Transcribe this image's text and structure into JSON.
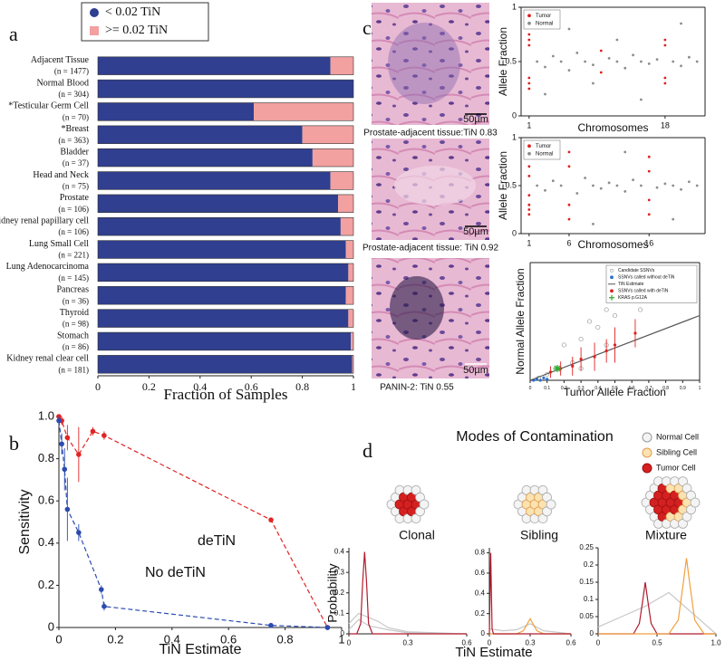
{
  "chart_data": [
    {
      "type": "bar",
      "orientation": "horizontal",
      "stacked": true,
      "panel": "a",
      "categories": [
        "Adjacent Tissue",
        "Normal Blood",
        "*Testicular Germ Cell",
        "*Breast",
        "Bladder",
        "Head and Neck",
        "Prostate",
        "Kidney renal papillary cell",
        "Lung Small Cell",
        "Lung Adenocarcinoma",
        "Pancreas",
        "Thyroid",
        "Stomach",
        "Kidney renal clear cell"
      ],
      "n_labels": [
        "(n = 1477)",
        "(n = 304)",
        "(n = 70)",
        "(n = 363)",
        "(n = 37)",
        "(n = 75)",
        "(n = 106)",
        "(n = 106)",
        "(n = 221)",
        "(n = 145)",
        "(n = 36)",
        "(n = 98)",
        "(n = 86)",
        "(n = 181)"
      ],
      "category_colors": [
        "#111111",
        "#111111",
        "#2a3a9a",
        "#2a3a9a",
        "#111111",
        "#111111",
        "#111111",
        "#111111",
        "#111111",
        "#111111",
        "#111111",
        "#111111",
        "#111111",
        "#111111"
      ],
      "series": [
        {
          "name": "< 0.02 TiN",
          "color": "#303f8f",
          "values": [
            0.91,
            1.0,
            0.61,
            0.8,
            0.84,
            0.91,
            0.94,
            0.95,
            0.97,
            0.98,
            0.97,
            0.98,
            0.99,
            0.995
          ]
        },
        {
          "name": ">= 0.02 TiN",
          "color": "#f2a0a0",
          "values": [
            0.09,
            0,
            0.39,
            0.2,
            0.16,
            0.09,
            0.06,
            0.05,
            0.03,
            0.02,
            0.03,
            0.02,
            0.01,
            0.005
          ]
        }
      ],
      "xlabel": "Fraction of Samples",
      "xlim": [
        0,
        1
      ],
      "xticks": [
        0,
        0.2,
        0.4,
        0.6,
        0.8,
        1
      ]
    },
    {
      "type": "line",
      "panel": "b",
      "xlabel": "TiN Estimate",
      "ylabel": "Sensitivity",
      "xlim": [
        0,
        1
      ],
      "ylim": [
        0,
        1
      ],
      "xticks": [
        0,
        0.2,
        0.4,
        0.6,
        0.8,
        1
      ],
      "yticks": [
        0,
        0.2,
        0.4,
        0.6,
        0.8,
        {
          "value": 1,
          "label": "1.0"
        }
      ],
      "series": [
        {
          "name": "deTiN",
          "color": "#e02424",
          "line": "dashed",
          "marker": "dot",
          "x": [
            0,
            0.01,
            0.03,
            0.07,
            0.12,
            0.16,
            0.75,
            0.95
          ],
          "values": [
            1,
            0.98,
            0.9,
            0.82,
            0.93,
            0.91,
            0.51,
            0
          ],
          "errors": [
            0.01,
            0.02,
            0.06,
            0.13,
            0.02,
            0.02,
            0.01,
            0.01
          ]
        },
        {
          "name": "No deTiN",
          "color": "#2b4bb0",
          "line": "dashed",
          "marker": "dot",
          "x": [
            0,
            0.01,
            0.02,
            0.03,
            0.07,
            0.15,
            0.16,
            0.75,
            0.95
          ],
          "values": [
            0.98,
            0.87,
            0.75,
            0.56,
            0.45,
            0.18,
            0.1,
            0.01,
            0
          ],
          "errors": [
            0.02,
            0.05,
            0.1,
            0.15,
            0.04,
            0.02,
            0.02,
            0.01,
            0.005
          ]
        }
      ]
    },
    {
      "type": "scatter",
      "panel": "c",
      "xlabel": "Chromosomes",
      "ylabel": "Allele Fraction",
      "legend": "upper left",
      "xlim": [
        0,
        23
      ],
      "ylim": [
        0,
        1
      ],
      "xticks": [
        1,
        18
      ],
      "yticks": [
        0,
        0.5,
        1
      ],
      "series": [
        {
          "name": "Tumor",
          "color": "#e02020",
          "marker": "dot",
          "x": [
            1,
            1,
            1,
            1,
            1,
            1,
            18,
            18,
            18,
            18,
            10,
            10
          ],
          "values": [
            0.25,
            0.35,
            0.65,
            0.75,
            0.3,
            0.7,
            0.3,
            0.35,
            0.65,
            0.7,
            0.4,
            0.6
          ]
        },
        {
          "name": "Normal",
          "color": "#8c8c8c",
          "marker": "dot",
          "x": [
            2,
            3,
            4,
            5,
            6,
            7,
            8,
            9,
            11,
            12,
            13,
            14,
            15,
            16,
            17,
            19,
            20,
            21,
            22,
            3,
            6,
            9,
            12,
            15,
            20
          ],
          "values": [
            0.5,
            0.45,
            0.55,
            0.5,
            0.42,
            0.58,
            0.5,
            0.47,
            0.53,
            0.5,
            0.44,
            0.56,
            0.5,
            0.48,
            0.52,
            0.5,
            0.46,
            0.54,
            0.5,
            0.2,
            0.8,
            0.3,
            0.7,
            0.15,
            0.85
          ]
        }
      ]
    },
    {
      "type": "scatter",
      "xlabel": "Chromosomes",
      "ylabel": "Allele Fraction",
      "legend": "upper left",
      "xlim": [
        0,
        23
      ],
      "ylim": [
        0,
        1
      ],
      "xticks": [
        1,
        6,
        16
      ],
      "yticks": [
        0,
        0.5,
        1
      ],
      "series": [
        {
          "name": "Tumor",
          "color": "#e02020",
          "marker": "dot",
          "x": [
            1,
            1,
            1,
            1,
            1,
            1,
            1,
            6,
            6,
            6,
            6,
            16,
            16,
            16,
            16
          ],
          "values": [
            0.2,
            0.3,
            0.4,
            0.6,
            0.7,
            0.8,
            0.25,
            0.15,
            0.3,
            0.7,
            0.85,
            0.2,
            0.35,
            0.65,
            0.8
          ]
        },
        {
          "name": "Normal",
          "color": "#8c8c8c",
          "marker": "dot",
          "x": [
            2,
            3,
            4,
            5,
            7,
            8,
            9,
            10,
            11,
            12,
            13,
            14,
            15,
            17,
            18,
            19,
            20,
            21,
            22,
            4,
            9,
            13,
            19
          ],
          "values": [
            0.5,
            0.45,
            0.55,
            0.5,
            0.42,
            0.58,
            0.5,
            0.47,
            0.53,
            0.5,
            0.44,
            0.56,
            0.5,
            0.48,
            0.52,
            0.5,
            0.46,
            0.54,
            0.5,
            0.9,
            0.1,
            0.85,
            0.15
          ]
        }
      ]
    },
    {
      "type": "scatter",
      "xlabel": "Tumor Allele Fraction",
      "ylabel": "Normal Allele Fraction",
      "legend": "upper right",
      "xlim": [
        0,
        1
      ],
      "ylim": [
        0,
        1
      ],
      "xticks": [
        0,
        0.1,
        0.2,
        0.3,
        0.4,
        0.5,
        0.6,
        0.7,
        0.8,
        0.9,
        1
      ],
      "series": [
        {
          "name": "Candidate SSNVs",
          "color": "#999999",
          "marker": "open",
          "x": [
            0.05,
            0.1,
            0.15,
            0.2,
            0.25,
            0.3,
            0.35,
            0.4,
            0.45,
            0.5,
            0.55,
            0.6,
            0.3,
            0.45,
            0.5,
            0.6,
            0.65,
            0.7
          ],
          "values": [
            0.02,
            0.05,
            0.1,
            0.3,
            0.15,
            0.35,
            0.5,
            0.45,
            0.6,
            0.55,
            0.7,
            0.8,
            0.1,
            0.3,
            0.85,
            0.95,
            0.6,
            0.75
          ]
        },
        {
          "name": "SSNVs called without deTiN",
          "color": "#2b6fd0",
          "marker": "dot",
          "x": [
            0.02,
            0.04,
            0.06,
            0.08,
            0.1
          ],
          "values": [
            0,
            0.01,
            0,
            0.02,
            0.01
          ]
        },
        {
          "name": "TiN Estimate",
          "color": "#555555",
          "line": "solid",
          "x": [
            0,
            1
          ],
          "values": [
            0,
            0.55
          ]
        },
        {
          "name": "SSNVs called with deTiN",
          "color": "#e02020",
          "marker": "dot",
          "x": [
            0.12,
            0.18,
            0.25,
            0.3,
            0.38,
            0.45,
            0.5,
            0.62
          ],
          "values": [
            0.07,
            0.1,
            0.12,
            0.18,
            0.2,
            0.25,
            0.3,
            0.4
          ],
          "errors": [
            0.05,
            0.06,
            0.08,
            0.1,
            0.12,
            0.1,
            0.15,
            0.12
          ]
        },
        {
          "name": "KRAS p.G12A",
          "color": "#2eaa2e",
          "marker": "star",
          "x": [
            0.16
          ],
          "values": [
            0.1
          ]
        }
      ]
    },
    {
      "type": "line",
      "title": "Clonal",
      "xlim": [
        0,
        0.6
      ],
      "ylim": [
        0,
        0.42
      ],
      "xticks": [
        0,
        0.3,
        0.6
      ],
      "yticks": [
        0,
        0.1,
        0.2,
        0.3,
        0.4
      ],
      "series": [
        {
          "color": "#c8c8c8",
          "line": "solid",
          "x": [
            0,
            0.05,
            0.1,
            0.15,
            0.2,
            0.3,
            0.6
          ],
          "values": [
            0.05,
            0.1,
            0.08,
            0.06,
            0.03,
            0.01,
            0
          ]
        },
        {
          "color": "#c8c8c8",
          "line": "solid",
          "x": [
            0,
            0.05,
            0.1,
            0.2,
            0.3,
            0.6
          ],
          "values": [
            0.02,
            0.07,
            0.04,
            0.02,
            0.005,
            0
          ]
        },
        {
          "color": "#b01c2e",
          "line": "solid",
          "x": [
            0,
            0.04,
            0.06,
            0.07,
            0.08,
            0.09,
            0.1,
            0.12,
            0.6
          ],
          "values": [
            0,
            0,
            0.05,
            0.25,
            0.4,
            0.25,
            0.05,
            0,
            0
          ]
        }
      ]
    },
    {
      "type": "line",
      "title": "Sibling",
      "xlim": [
        0,
        0.6
      ],
      "ylim": [
        0,
        0.85
      ],
      "xticks": [
        0,
        0.3,
        0.6
      ],
      "yticks": [
        0,
        0.2,
        0.4,
        0.6,
        0.8
      ],
      "series": [
        {
          "color": "#c8c8c8",
          "line": "solid",
          "x": [
            0,
            0.1,
            0.2,
            0.3,
            0.4,
            0.6
          ],
          "values": [
            0.05,
            0.03,
            0.04,
            0.1,
            0.03,
            0
          ]
        },
        {
          "color": "#f0a040",
          "line": "solid",
          "x": [
            0,
            0.2,
            0.25,
            0.28,
            0.3,
            0.32,
            0.35,
            0.4,
            0.6
          ],
          "values": [
            0,
            0,
            0.03,
            0.1,
            0.15,
            0.1,
            0.03,
            0,
            0
          ]
        },
        {
          "color": "#b01c2e",
          "line": "solid",
          "x": [
            0,
            0.005,
            0.01,
            0.015,
            0.02,
            0.03,
            0.6
          ],
          "values": [
            0,
            0.4,
            0.8,
            0.4,
            0.05,
            0,
            0
          ]
        }
      ]
    },
    {
      "type": "line",
      "title": "Mixture",
      "xlim": [
        0,
        1
      ],
      "ylim": [
        0,
        0.25
      ],
      "xticks": [
        0,
        0.5,
        {
          "value": 1,
          "label": "1.0"
        }
      ],
      "yticks": [
        0,
        0.05,
        0.1,
        0.15,
        0.2,
        0.25
      ],
      "series": [
        {
          "color": "#c8c8c8",
          "line": "solid",
          "x": [
            0,
            0.2,
            0.4,
            0.6,
            0.8,
            1
          ],
          "values": [
            0.02,
            0.05,
            0.08,
            0.12,
            0.06,
            0
          ]
        },
        {
          "color": "#b01c2e",
          "line": "solid",
          "x": [
            0,
            0.3,
            0.35,
            0.38,
            0.4,
            0.42,
            0.45,
            0.5,
            1
          ],
          "values": [
            0,
            0,
            0.03,
            0.1,
            0.15,
            0.1,
            0.03,
            0,
            0
          ]
        },
        {
          "color": "#f0a040",
          "line": "solid",
          "x": [
            0,
            0.6,
            0.68,
            0.72,
            0.75,
            0.78,
            0.82,
            0.9,
            1
          ],
          "values": [
            0,
            0,
            0.04,
            0.14,
            0.22,
            0.14,
            0.04,
            0,
            0
          ]
        }
      ]
    }
  ],
  "images": [
    {
      "caption": "Prostate-adjacent tissue:TiN 0.83",
      "scale": "50µm"
    },
    {
      "caption": "Prostate-adjacent tissue: TiN 0.92",
      "scale": "50µm"
    },
    {
      "caption": "PANIN-2: TiN 0.55",
      "scale": "50µm"
    }
  ],
  "diagram": {
    "panel": "d",
    "title": "Modes of Contamination",
    "legend": [
      "Normal Cell",
      "Sibling Cell",
      "Tumor Cell"
    ],
    "ylabel": "Probability",
    "xlabel": "TiN Estimate"
  }
}
